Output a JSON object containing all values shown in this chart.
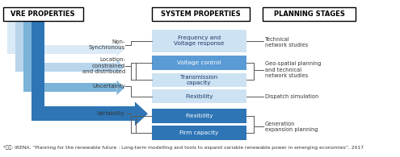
{
  "title_vre": "VRE PROPERTIES",
  "title_sys": "SYSTEM PROPERTIES",
  "title_plan": "PLANNING STAGES",
  "vre_props": [
    "Non-\nSynchronous",
    "Location-\nconstrained\nand distributed",
    "Uncertainty",
    "Variability"
  ],
  "footnote": "*출첸: IRENA, “Planning for the renewable future : Long-term modelling and tools to expand variable renewable power in emerging economies”, 2017",
  "color_lightest": "#daeaf6",
  "color_light": "#b8d5ec",
  "color_mid": "#7bb3d9",
  "color_dark_arrow": "#2e75b6",
  "color_box_light": "#cde3f4",
  "color_box_mid": "#5b9bd5",
  "color_box_dark": "#2e75b6",
  "color_line": "#595959",
  "bg": "#ffffff"
}
